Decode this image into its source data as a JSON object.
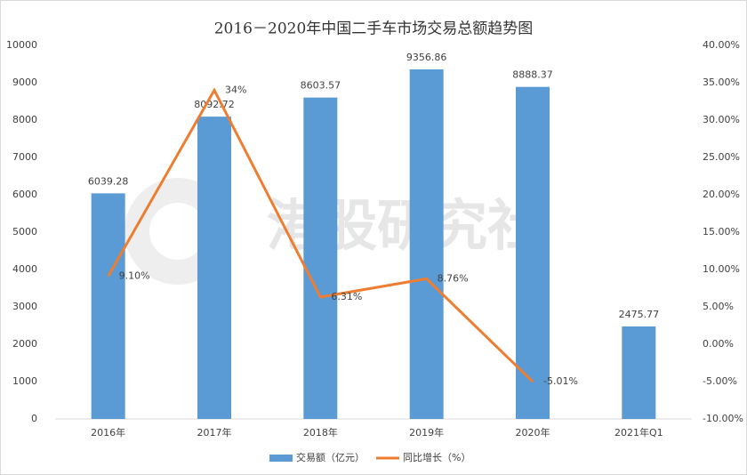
{
  "chart_data": {
    "type": "bar-line",
    "title": "2016－2020年中国二手车市场交易总额趋势图",
    "watermark": "港股研究社",
    "categories": [
      "2016年",
      "2017年",
      "2018年",
      "2019年",
      "2020年",
      "2021年Q1"
    ],
    "series": [
      {
        "name": "交易额（亿元）",
        "type": "bar",
        "color": "#5b9bd5",
        "values": [
          6039.28,
          8092.72,
          8603.57,
          9356.86,
          8888.37,
          2475.77
        ]
      },
      {
        "name": "同比增长（%）",
        "type": "line",
        "axis": "y2",
        "color": "#ed7d31",
        "values": [
          9.1,
          34,
          6.31,
          8.76,
          -5.01,
          null
        ],
        "value_labels": [
          "9.10%",
          "34%",
          "6.31%",
          "8.76%",
          "-5.01%",
          null
        ]
      }
    ],
    "ylim": [
      0,
      10000
    ],
    "yticks": [
      0,
      1000,
      2000,
      3000,
      4000,
      5000,
      6000,
      7000,
      8000,
      9000,
      10000
    ],
    "y2lim": [
      -10,
      40
    ],
    "y2ticks": [
      {
        "value": -10,
        "label": "-10.00%"
      },
      {
        "value": -5,
        "label": "-5.00%"
      },
      {
        "value": 0,
        "label": "0.00%"
      },
      {
        "value": 5,
        "label": "5.00%"
      },
      {
        "value": 10,
        "label": "10.00%"
      },
      {
        "value": 15,
        "label": "15.00%"
      },
      {
        "value": 20,
        "label": "20.00%"
      },
      {
        "value": 25,
        "label": "25.00%"
      },
      {
        "value": 30,
        "label": "30.00%"
      },
      {
        "value": 35,
        "label": "35.00%"
      },
      {
        "value": 40,
        "label": "40.00%"
      }
    ],
    "legend": "bottom"
  }
}
